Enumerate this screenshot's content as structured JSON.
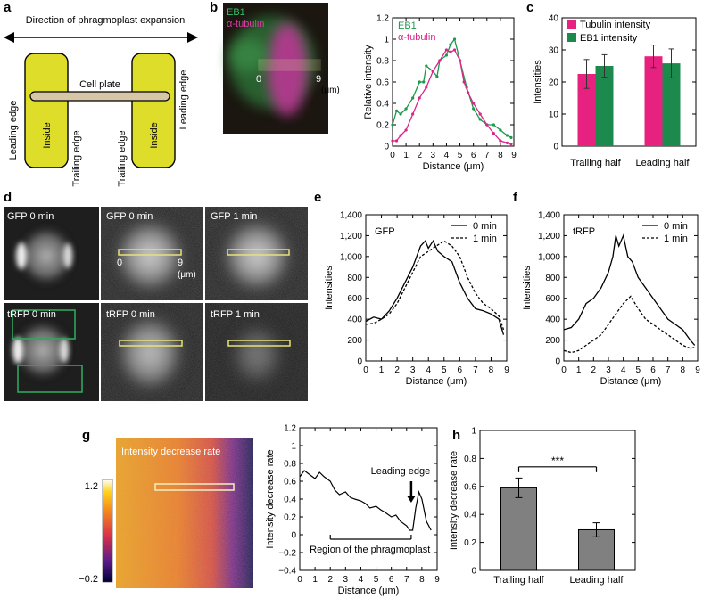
{
  "panel_labels": {
    "a": "a",
    "b": "b",
    "c": "c",
    "d": "d",
    "e": "e",
    "f": "f",
    "g": "g",
    "h": "h"
  },
  "panel_a": {
    "direction_label": "Direction of phragmoplast expansion",
    "cell_plate_label": "Cell plate",
    "leading_edge_label": "Leading edge",
    "trailing_edge_label": "Trailing edge",
    "inside_label": "Inside",
    "colors": {
      "lobe_fill": "#dede2a",
      "plate_fill": "#d8c7a6"
    }
  },
  "panel_b_image": {
    "eb1_label": "EB1",
    "tubulin_label": "α-tubulin",
    "scale_start": "0",
    "scale_end": "9",
    "scale_unit": "(μm)"
  },
  "panel_d": {
    "labels": [
      "GFP 0 min",
      "GFP 0 min",
      "GFP 1 min",
      "tRFP 0 min",
      "tRFP 0 min",
      "tRFP 1 min"
    ],
    "scale_start": "0",
    "scale_end": "9",
    "scale_unit": "(μm)"
  },
  "panel_g_image": {
    "title": "Intensity decrease rate",
    "colorbar_max": "1.2",
    "colorbar_min": "−0.2"
  },
  "chart_data": [
    {
      "id": "b",
      "type": "line",
      "xlabel": "Distance (μm)",
      "ylabel": "Relative intensity",
      "xlim": [
        0,
        9
      ],
      "ylim": [
        0,
        1.2
      ],
      "xticks": [
        0,
        1,
        2,
        3,
        4,
        5,
        6,
        7,
        8,
        9
      ],
      "yticks": [
        0,
        0.2,
        0.4,
        0.6,
        0.8,
        1.0,
        1.2
      ],
      "ytick_labels": [
        "0",
        "0.2",
        "0.4",
        "0.6",
        "0.8",
        "1",
        "1.2"
      ],
      "legend": [
        "EB1",
        "α-tubulin"
      ],
      "series": [
        {
          "name": "EB1",
          "color": "#1a9a4a",
          "x": [
            0,
            0.3,
            0.6,
            1.0,
            1.5,
            2.0,
            2.3,
            2.5,
            3.0,
            3.3,
            3.5,
            4.0,
            4.3,
            4.6,
            5.0,
            5.5,
            6.0,
            6.5,
            7.0,
            7.5,
            8.0,
            8.5,
            8.8
          ],
          "y": [
            0.2,
            0.33,
            0.3,
            0.35,
            0.45,
            0.6,
            0.6,
            0.75,
            0.7,
            0.65,
            0.8,
            0.85,
            0.95,
            1.0,
            0.8,
            0.55,
            0.35,
            0.25,
            0.2,
            0.2,
            0.15,
            0.1,
            0.08
          ]
        },
        {
          "name": "α-tubulin",
          "color": "#d9268a",
          "x": [
            0,
            0.3,
            0.6,
            1.0,
            1.5,
            2.0,
            2.5,
            3.0,
            3.5,
            4.0,
            4.3,
            4.6,
            5.0,
            5.3,
            5.6,
            6.0,
            6.5,
            7.0,
            7.5,
            8.0,
            8.5,
            8.8
          ],
          "y": [
            0.05,
            0.05,
            0.1,
            0.15,
            0.3,
            0.45,
            0.55,
            0.7,
            0.8,
            0.9,
            0.88,
            0.9,
            0.8,
            0.6,
            0.5,
            0.4,
            0.3,
            0.2,
            0.12,
            0.05,
            0.03,
            0.02
          ]
        }
      ]
    },
    {
      "id": "c",
      "type": "bar",
      "ylabel": "Intensities",
      "ylim": [
        0,
        40
      ],
      "yticks": [
        0,
        10,
        20,
        30,
        40
      ],
      "categories": [
        "Trailing half",
        "Leading half"
      ],
      "legend": [
        "Tubulin intensity",
        "EB1 intensity"
      ],
      "series": [
        {
          "name": "Tubulin intensity",
          "color": "#e7217f",
          "values": [
            22.5,
            28
          ],
          "errors": [
            4.5,
            3.5
          ]
        },
        {
          "name": "EB1 intensity",
          "color": "#1b8a4c",
          "values": [
            25,
            25.8
          ],
          "errors": [
            3.5,
            4.5
          ]
        }
      ]
    },
    {
      "id": "e",
      "type": "line",
      "title": "GFP",
      "xlabel": "Distance (μm)",
      "ylabel": "Intensities",
      "xlim": [
        0,
        9
      ],
      "ylim": [
        0,
        1400
      ],
      "xticks": [
        0,
        1,
        2,
        3,
        4,
        5,
        6,
        7,
        8,
        9
      ],
      "yticks": [
        0,
        200,
        400,
        600,
        800,
        1000,
        1200,
        1400
      ],
      "ytick_labels": [
        "0",
        "200",
        "400",
        "600",
        "800",
        "1,000",
        "1,200",
        "1,400"
      ],
      "series": [
        {
          "name": "0 min",
          "dash": "solid",
          "x": [
            0,
            0.5,
            1.0,
            1.5,
            2.0,
            2.5,
            3.0,
            3.5,
            3.8,
            4.0,
            4.3,
            4.6,
            5.0,
            5.5,
            6.0,
            6.5,
            7.0,
            7.5,
            8.0,
            8.5,
            8.8
          ],
          "y": [
            380,
            420,
            400,
            480,
            600,
            750,
            900,
            1100,
            1150,
            1080,
            1150,
            1050,
            1000,
            950,
            750,
            600,
            500,
            480,
            450,
            400,
            250
          ]
        },
        {
          "name": "1 min",
          "dash": "dashed",
          "x": [
            0,
            0.5,
            1.0,
            1.5,
            2.0,
            2.5,
            3.0,
            3.5,
            4.0,
            4.5,
            5.0,
            5.5,
            6.0,
            6.5,
            7.0,
            7.5,
            8.0,
            8.5,
            8.8
          ],
          "y": [
            350,
            360,
            400,
            450,
            550,
            700,
            850,
            1000,
            1050,
            1100,
            1150,
            1100,
            1000,
            800,
            650,
            550,
            500,
            430,
            300
          ]
        }
      ]
    },
    {
      "id": "f",
      "type": "line",
      "title": "tRFP",
      "xlabel": "Distance (μm)",
      "ylabel": "Intensities",
      "xlim": [
        0,
        9
      ],
      "ylim": [
        0,
        1400
      ],
      "xticks": [
        0,
        1,
        2,
        3,
        4,
        5,
        6,
        7,
        8,
        9
      ],
      "yticks": [
        0,
        200,
        400,
        600,
        800,
        1000,
        1200,
        1400
      ],
      "ytick_labels": [
        "0",
        "200",
        "400",
        "600",
        "800",
        "1,000",
        "1,200",
        "1,400"
      ],
      "series": [
        {
          "name": "0 min",
          "dash": "solid",
          "x": [
            0,
            0.5,
            1.0,
            1.5,
            2.0,
            2.5,
            3.0,
            3.3,
            3.5,
            3.7,
            4.0,
            4.3,
            4.6,
            5.0,
            5.5,
            6.0,
            6.5,
            7.0,
            7.5,
            8.0,
            8.5,
            8.8
          ],
          "y": [
            300,
            320,
            400,
            550,
            600,
            700,
            850,
            1000,
            1200,
            1100,
            1200,
            1000,
            950,
            800,
            700,
            600,
            500,
            400,
            350,
            300,
            200,
            150
          ]
        },
        {
          "name": "1 min",
          "dash": "dashed",
          "x": [
            0,
            0.5,
            1.0,
            1.5,
            2.0,
            2.5,
            3.0,
            3.5,
            4.0,
            4.5,
            5.0,
            5.5,
            6.0,
            6.5,
            7.0,
            7.5,
            8.0,
            8.5,
            8.8
          ],
          "y": [
            100,
            80,
            100,
            150,
            200,
            250,
            350,
            450,
            550,
            620,
            500,
            400,
            350,
            300,
            250,
            200,
            150,
            120,
            130
          ]
        }
      ]
    },
    {
      "id": "g",
      "type": "line",
      "xlabel": "Distance (μm)",
      "ylabel": "Intensity decrease rate",
      "xlim": [
        0,
        9
      ],
      "ylim": [
        -0.4,
        1.2
      ],
      "xticks": [
        0,
        1,
        2,
        3,
        4,
        5,
        6,
        7,
        8,
        9
      ],
      "yticks": [
        -0.4,
        -0.2,
        0,
        0.2,
        0.4,
        0.6,
        0.8,
        1.0,
        1.2
      ],
      "ytick_labels": [
        "−0.4",
        "−0.2",
        "0",
        "0.2",
        "0.4",
        "0.6",
        "0.8",
        "1",
        "1.2"
      ],
      "annotations": {
        "leading_edge": "Leading edge",
        "region": "Region of the phragmoplast"
      },
      "series": [
        {
          "name": "Intensity decrease rate",
          "dash": "solid",
          "x": [
            0,
            0.3,
            0.6,
            1.0,
            1.3,
            1.6,
            2.0,
            2.3,
            2.6,
            3.0,
            3.3,
            3.6,
            4.0,
            4.3,
            4.6,
            5.0,
            5.3,
            5.6,
            6.0,
            6.3,
            6.6,
            7.0,
            7.2,
            7.4,
            7.6,
            7.8,
            8.0,
            8.3,
            8.6
          ],
          "y": [
            0.65,
            0.72,
            0.68,
            0.63,
            0.7,
            0.65,
            0.6,
            0.5,
            0.45,
            0.48,
            0.42,
            0.4,
            0.38,
            0.35,
            0.3,
            0.32,
            0.28,
            0.25,
            0.2,
            0.22,
            0.15,
            0.1,
            0.05,
            0.05,
            0.3,
            0.48,
            0.4,
            0.15,
            0.05
          ]
        }
      ]
    },
    {
      "id": "h",
      "type": "bar",
      "ylabel": "Intensity decrease rate",
      "ylim": [
        0,
        1.0
      ],
      "yticks": [
        0,
        0.2,
        0.4,
        0.6,
        0.8,
        1.0
      ],
      "ytick_labels": [
        "0",
        "0.2",
        "0.4",
        "0.6",
        "0.8",
        "1"
      ],
      "categories": [
        "Trailing half",
        "Leading half"
      ],
      "significance": "***",
      "series": [
        {
          "name": "Intensity decrease rate",
          "color": "#808080",
          "values": [
            0.59,
            0.29
          ],
          "errors": [
            0.07,
            0.05
          ]
        }
      ]
    }
  ]
}
